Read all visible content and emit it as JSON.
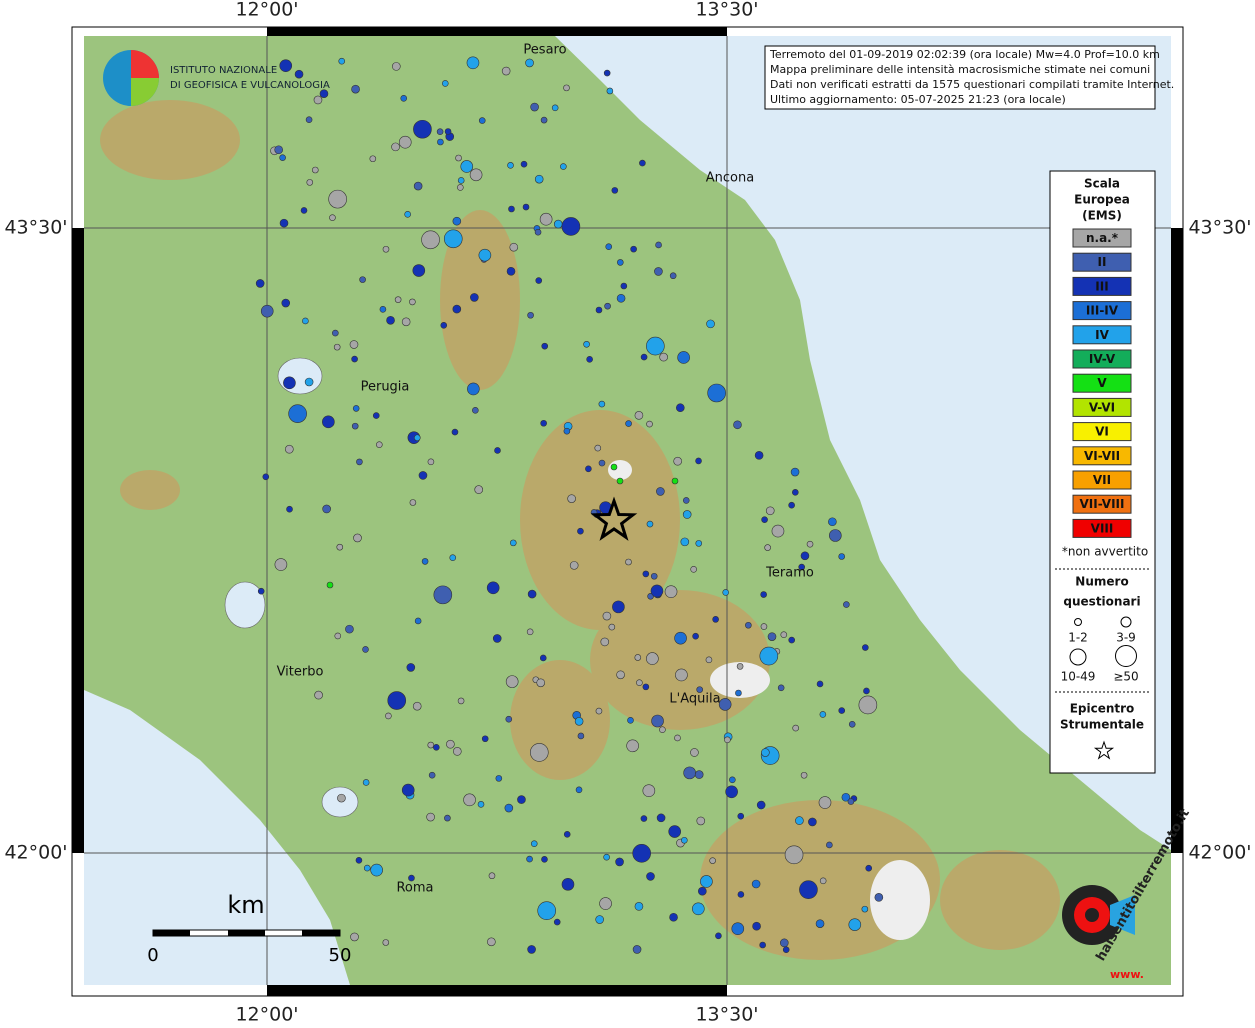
{
  "header": {
    "info_lines": [
      "Terremoto del 01-09-2019 02:02:39 (ora locale) Mw=4.0 Prof=10.0 km",
      "Mappa preliminare delle intensità macrosismiche stimate nei comuni",
      "Dati non verificati estratti da 1575 questionari compilati tramite Internet.",
      "Ultimo aggiornamento: 05-07-2025 21:23 (ora locale)"
    ]
  },
  "logo": {
    "lines": [
      "ISTITUTO NAZIONALE",
      "DI GEOFISICA E VULCANOLOGIA"
    ]
  },
  "graticule": {
    "lon_labels": [
      "12°00'",
      "13°30'"
    ],
    "lat_labels": [
      "43°30'",
      "42°00'"
    ]
  },
  "cities": [
    "Pesaro",
    "Ancona",
    "Perugia",
    "Teramo",
    "Viterbo",
    "L'Aquila",
    "Roma"
  ],
  "legend": {
    "title_lines": [
      "Scala",
      "Europea",
      "(EMS)"
    ],
    "classes": [
      {
        "label": "n.a.*",
        "color": "#a6a6a6"
      },
      {
        "label": "II",
        "color": "#3f5fb0"
      },
      {
        "label": "III",
        "color": "#1432b4"
      },
      {
        "label": "III-IV",
        "color": "#1c6fd6"
      },
      {
        "label": "IV",
        "color": "#22a2ea"
      },
      {
        "label": "IV-V",
        "color": "#13ad5a"
      },
      {
        "label": "V",
        "color": "#14e014"
      },
      {
        "label": "V-VI",
        "color": "#b2e400"
      },
      {
        "label": "VI",
        "color": "#f8f000"
      },
      {
        "label": "VI-VII",
        "color": "#f8b800"
      },
      {
        "label": "VII",
        "color": "#f8a000"
      },
      {
        "label": "VII-VIII",
        "color": "#f07010"
      },
      {
        "label": "VIII",
        "color": "#f00000"
      }
    ],
    "note": "*non avvertito",
    "size_title_lines": [
      "Numero",
      "questionari"
    ],
    "sizes": [
      "1-2",
      "3-9",
      "10-49",
      "≥50"
    ],
    "epicenter_lines": [
      "Epicentro",
      "Strumentale"
    ]
  },
  "scale_bar": {
    "unit": "km",
    "labels": [
      "0",
      "50"
    ]
  },
  "badge": {
    "text": "haisentitoilterremoto.it",
    "www": "www."
  }
}
